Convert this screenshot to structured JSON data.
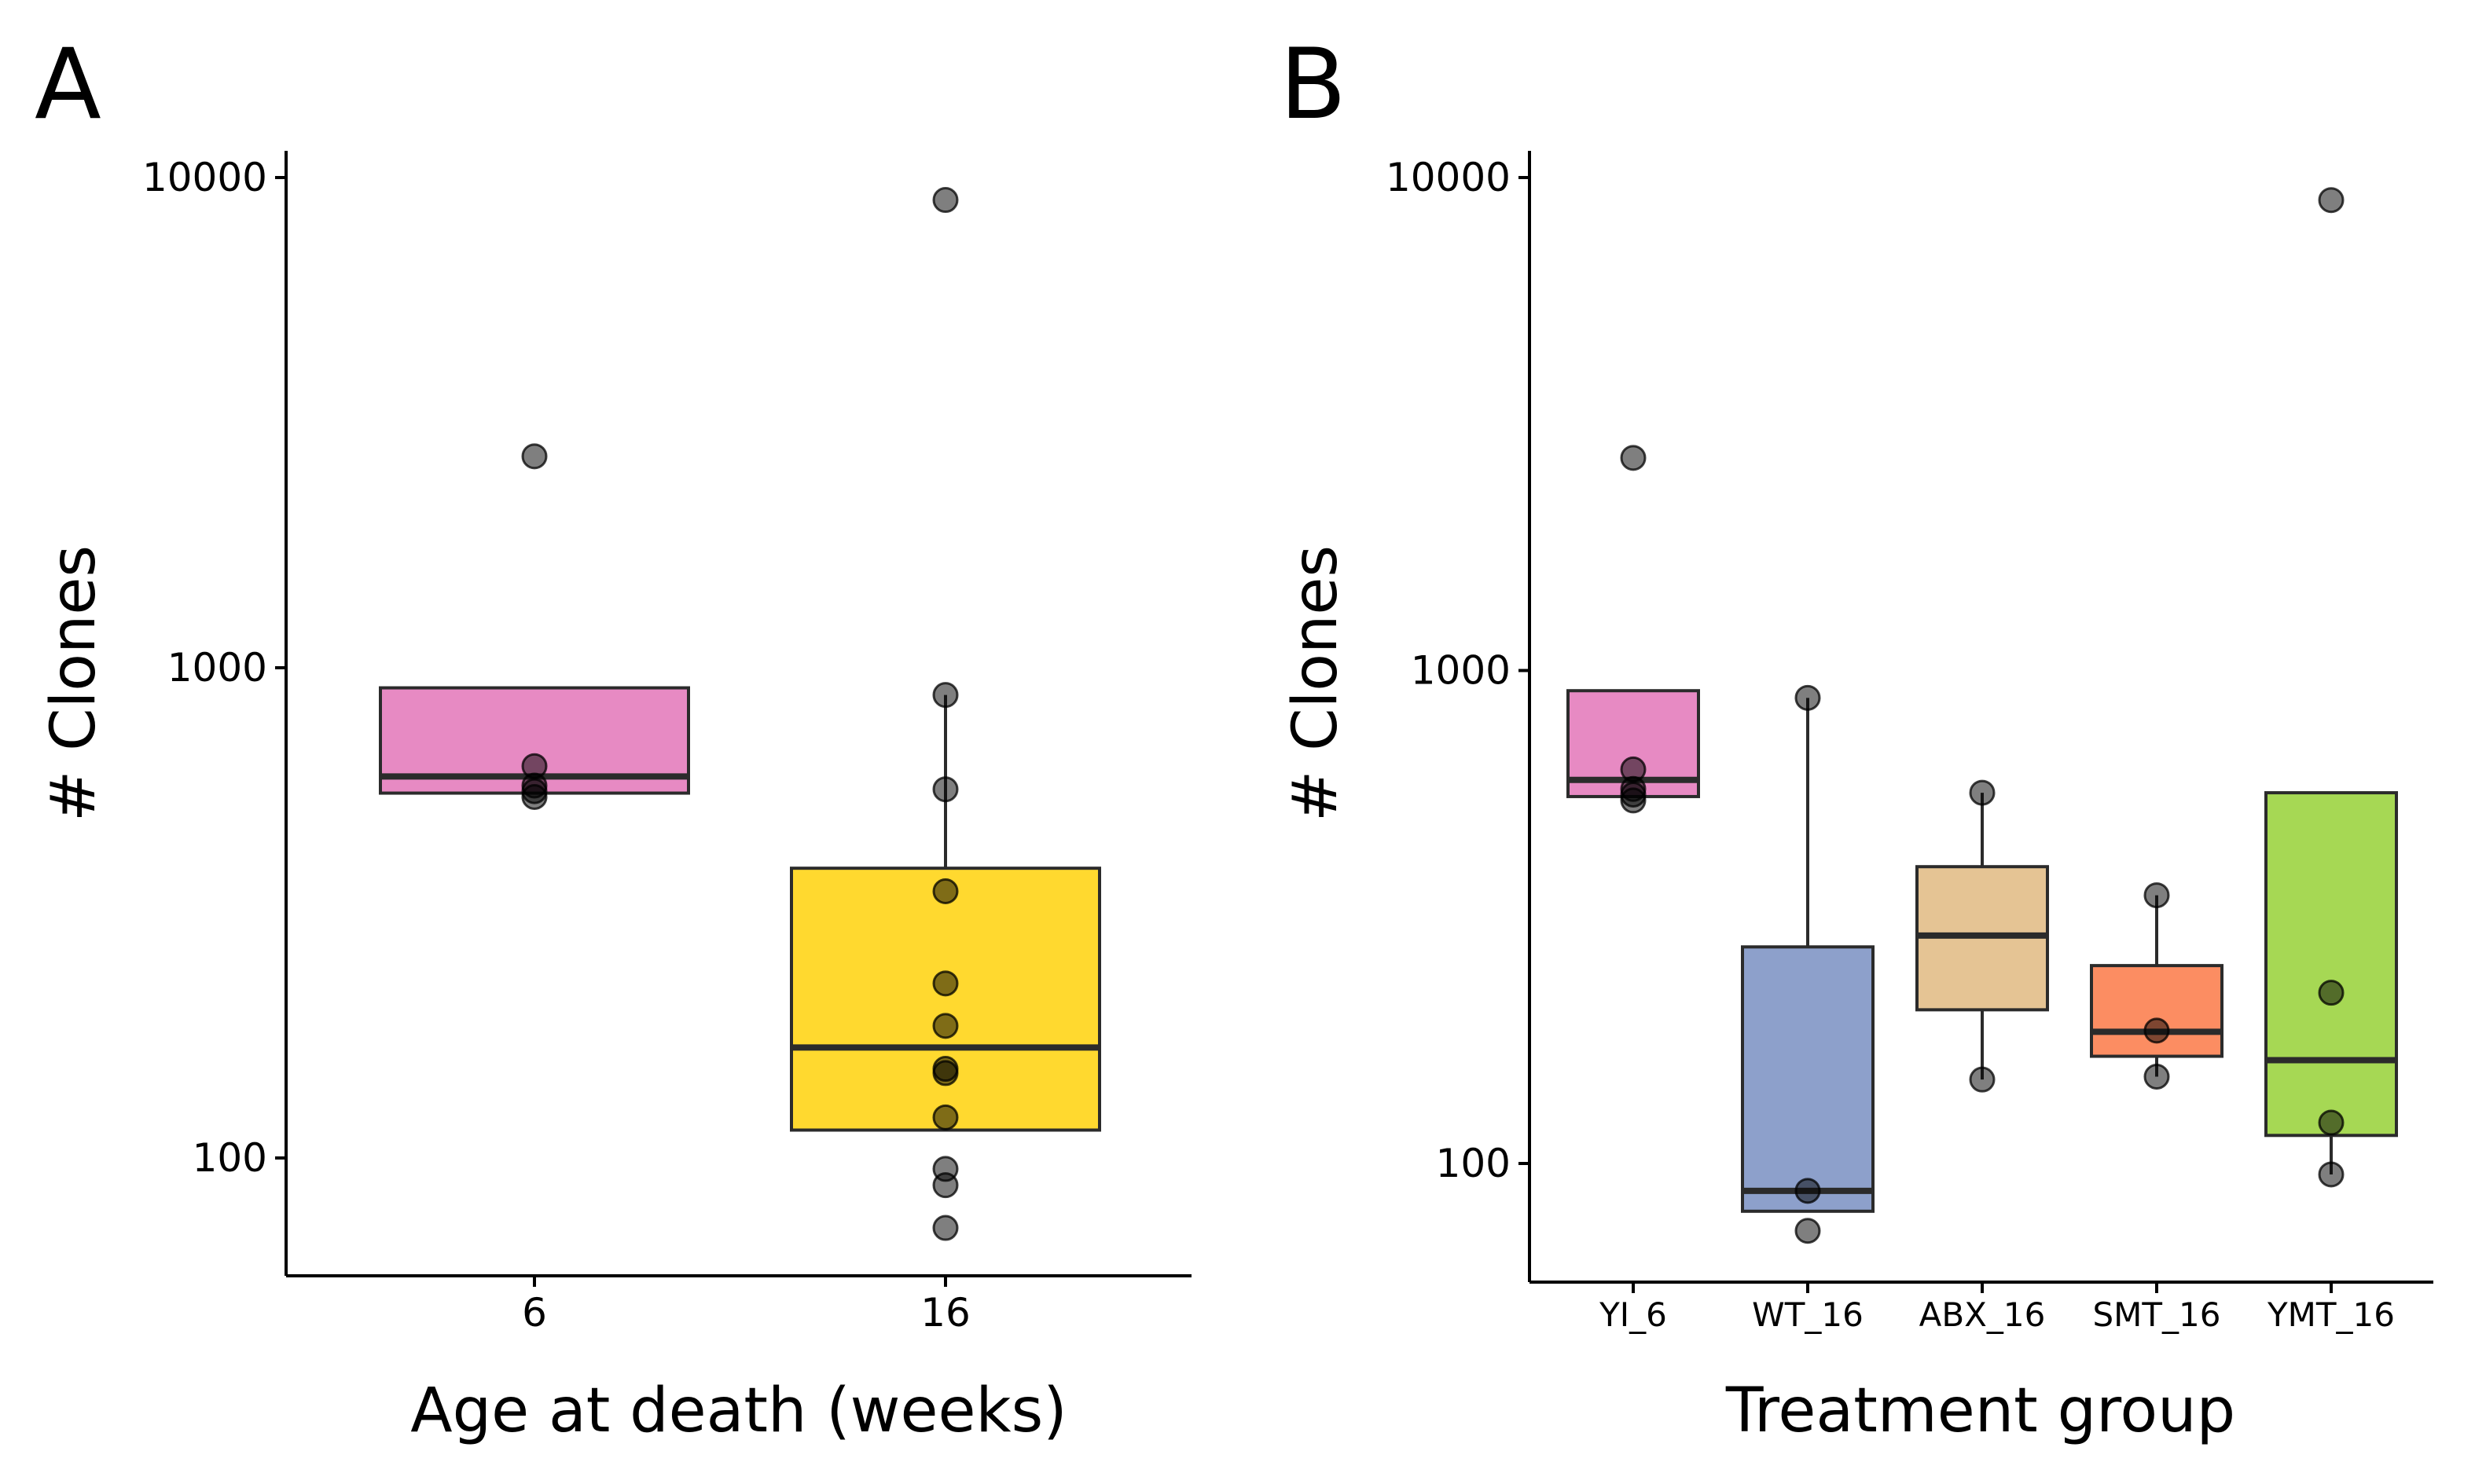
{
  "chart_data": [
    {
      "type": "box",
      "panel": "A",
      "xlabel": "Age at death (weeks)",
      "ylabel": "# Clones",
      "yscale": "log",
      "ylim": [
        60,
        12000
      ],
      "yticks": [
        "100",
        "1000",
        "10000"
      ],
      "categories": [
        "6",
        "16"
      ],
      "colors": [
        "#e78ac3",
        "#ffd92f"
      ],
      "boxes": [
        {
          "q1": 555,
          "median": 600,
          "q3": 910,
          "whisker_low": 555,
          "whisker_high": 910,
          "points": [
            2700,
            630,
            575,
            560,
            545
          ]
        },
        {
          "q1": 114,
          "median": 168,
          "q3": 390,
          "whisker_low": 114,
          "whisker_high": 880,
          "points": [
            9000,
            880,
            565,
            350,
            227,
            186,
            152,
            149,
            121,
            95,
            88,
            72
          ]
        }
      ]
    },
    {
      "type": "box",
      "panel": "B",
      "xlabel": "Treatment group",
      "ylabel": "# Clones",
      "yscale": "log",
      "ylim": [
        60,
        12000
      ],
      "yticks": [
        "100",
        "1000",
        "10000"
      ],
      "categories": [
        "YI_6",
        "WT_16",
        "ABX_16",
        "SMT_16",
        "YMT_16"
      ],
      "colors": [
        "#e78ac3",
        "#8da0cb",
        "#e5c494",
        "#fc8d62",
        "#a6d854"
      ],
      "boxes": [
        {
          "q1": 555,
          "median": 600,
          "q3": 910,
          "whisker_low": 555,
          "whisker_high": 910,
          "points": [
            2700,
            630,
            575,
            560,
            545
          ]
        },
        {
          "q1": 80,
          "median": 88,
          "q3": 275,
          "whisker_low": 80,
          "whisker_high": 880,
          "points": [
            880,
            88,
            73
          ]
        },
        {
          "q1": 205,
          "median": 290,
          "q3": 400,
          "whisker_low": 148,
          "whisker_high": 565,
          "points": [
            565,
            148
          ]
        },
        {
          "q1": 165,
          "median": 185,
          "q3": 252,
          "whisker_low": 150,
          "whisker_high": 350,
          "points": [
            350,
            186,
            150
          ]
        },
        {
          "q1": 114,
          "median": 162,
          "q3": 565,
          "whisker_low": 95,
          "whisker_high": 565,
          "points": [
            9000,
            222,
            121,
            95
          ]
        }
      ]
    }
  ]
}
